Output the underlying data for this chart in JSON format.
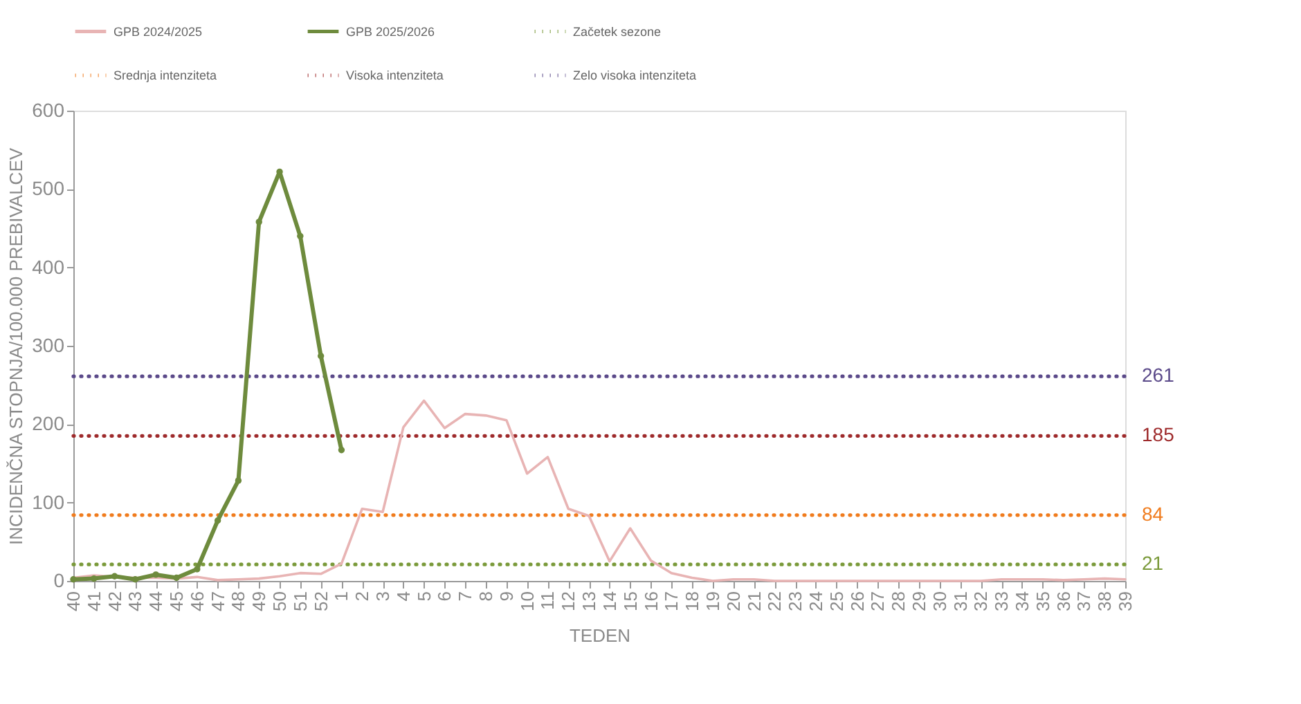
{
  "chart_data": {
    "type": "line",
    "xlabel": "TEDEN",
    "ylabel": "INCIDENČNA  STOPNJA/100.000  PREBIVALCEV",
    "categories": [
      "40",
      "41",
      "42",
      "43",
      "44",
      "45",
      "46",
      "47",
      "48",
      "49",
      "50",
      "51",
      "52",
      "1",
      "2",
      "3",
      "4",
      "5",
      "6",
      "7",
      "8",
      "9",
      "10",
      "11",
      "12",
      "13",
      "14",
      "15",
      "16",
      "17",
      "18",
      "19",
      "20",
      "21",
      "22",
      "23",
      "24",
      "25",
      "26",
      "27",
      "28",
      "29",
      "30",
      "31",
      "32",
      "33",
      "34",
      "35",
      "36",
      "37",
      "38",
      "39"
    ],
    "ylim": [
      0,
      600
    ],
    "yticks": [
      0,
      100,
      200,
      300,
      400,
      500,
      600
    ],
    "grid": false,
    "legend": "top",
    "series": [
      {
        "name": "GPB 2024/2025",
        "color": "#e8b4b4",
        "line_style": "solid",
        "marker": "none",
        "values": [
          4,
          7,
          5,
          4,
          4,
          3,
          5,
          1,
          2,
          3,
          6,
          10,
          9,
          22,
          92,
          88,
          196,
          230,
          195,
          213,
          211,
          205,
          137,
          158,
          92,
          83,
          25,
          67,
          26,
          10,
          4,
          0,
          2,
          2,
          0,
          0,
          0,
          0,
          0,
          0,
          0,
          0,
          0,
          0,
          0,
          2,
          2,
          2,
          1,
          2,
          3,
          2
        ]
      },
      {
        "name": "GPB 2025/2026",
        "color": "#6e8b3d",
        "line_style": "solid",
        "marker": "circle",
        "values": [
          2,
          3,
          6,
          2,
          8,
          4,
          15,
          77,
          128,
          458,
          522,
          440,
          287,
          167,
          null,
          null,
          null,
          null,
          null,
          null,
          null,
          null,
          null,
          null,
          null,
          null,
          null,
          null,
          null,
          null,
          null,
          null,
          null,
          null,
          null,
          null,
          null,
          null,
          null,
          null,
          null,
          null,
          null,
          null,
          null,
          null,
          null,
          null,
          null,
          null,
          null,
          null
        ]
      },
      {
        "name": "Začetek sezone",
        "color": "#7a9a3a",
        "line_style": "dotted",
        "marker": "none",
        "values": [
          21,
          21,
          21,
          21,
          21,
          21,
          21,
          21,
          21,
          21,
          21,
          21,
          21,
          21,
          21,
          21,
          21,
          21,
          21,
          21,
          21,
          21,
          21,
          21,
          21,
          21,
          21,
          21,
          21,
          21,
          21,
          21,
          21,
          21,
          21,
          21,
          21,
          21,
          21,
          21,
          21,
          21,
          21,
          21,
          21,
          21,
          21,
          21,
          21,
          21,
          21,
          21
        ],
        "value_labels": [
          null,
          null,
          null,
          null,
          null,
          null,
          null,
          null,
          null,
          null,
          null,
          null,
          null,
          null,
          null,
          null,
          null,
          null,
          null,
          null,
          null,
          null,
          null,
          null,
          null,
          null,
          null,
          null,
          null,
          null,
          null,
          null,
          null,
          null,
          null,
          null,
          null,
          null,
          null,
          null,
          null,
          null,
          null,
          null,
          null,
          null,
          null,
          null,
          null,
          null,
          null,
          "21"
        ]
      },
      {
        "name": "Srednja intenziteta",
        "color": "#f07c1e",
        "line_style": "dotted",
        "marker": "none",
        "values": [
          84,
          84,
          84,
          84,
          84,
          84,
          84,
          84,
          84,
          84,
          84,
          84,
          84,
          84,
          84,
          84,
          84,
          84,
          84,
          84,
          84,
          84,
          84,
          84,
          84,
          84,
          84,
          84,
          84,
          84,
          84,
          84,
          84,
          84,
          84,
          84,
          84,
          84,
          84,
          84,
          84,
          84,
          84,
          84,
          84,
          84,
          84,
          84,
          84,
          84,
          84,
          84
        ],
        "value_labels": [
          null,
          null,
          null,
          null,
          null,
          null,
          null,
          null,
          null,
          null,
          null,
          null,
          null,
          null,
          null,
          null,
          null,
          null,
          null,
          null,
          null,
          null,
          null,
          null,
          null,
          null,
          null,
          null,
          null,
          null,
          null,
          null,
          null,
          null,
          null,
          null,
          null,
          null,
          null,
          null,
          null,
          null,
          null,
          null,
          null,
          null,
          null,
          null,
          null,
          null,
          null,
          "84"
        ]
      },
      {
        "name": "Visoka intenziteta",
        "color": "#9e2a2b",
        "line_style": "dotted",
        "marker": "none",
        "values": [
          185,
          185,
          185,
          185,
          185,
          185,
          185,
          185,
          185,
          185,
          185,
          185,
          185,
          185,
          185,
          185,
          185,
          185,
          185,
          185,
          185,
          185,
          185,
          185,
          185,
          185,
          185,
          185,
          185,
          185,
          185,
          185,
          185,
          185,
          185,
          185,
          185,
          185,
          185,
          185,
          185,
          185,
          185,
          185,
          185,
          185,
          185,
          185,
          185,
          185,
          185,
          185
        ],
        "value_labels": [
          null,
          null,
          null,
          null,
          null,
          null,
          null,
          null,
          null,
          null,
          null,
          null,
          null,
          null,
          null,
          null,
          null,
          null,
          null,
          null,
          null,
          null,
          null,
          null,
          null,
          null,
          null,
          null,
          null,
          null,
          null,
          null,
          null,
          null,
          null,
          null,
          null,
          null,
          null,
          null,
          null,
          null,
          null,
          null,
          null,
          null,
          null,
          null,
          null,
          null,
          null,
          "185"
        ]
      },
      {
        "name": "Zelo visoka intenziteta",
        "color": "#5b4a8a",
        "line_style": "dotted",
        "marker": "none",
        "values": [
          261,
          261,
          261,
          261,
          261,
          261,
          261,
          261,
          261,
          261,
          261,
          261,
          261,
          261,
          261,
          261,
          261,
          261,
          261,
          261,
          261,
          261,
          261,
          261,
          261,
          261,
          261,
          261,
          261,
          261,
          261,
          261,
          261,
          261,
          261,
          261,
          261,
          261,
          261,
          261,
          261,
          261,
          261,
          261,
          261,
          261,
          261,
          261,
          261,
          261,
          261,
          261
        ],
        "value_labels": [
          null,
          null,
          null,
          null,
          null,
          null,
          null,
          null,
          null,
          null,
          null,
          null,
          null,
          null,
          null,
          null,
          null,
          null,
          null,
          null,
          null,
          null,
          null,
          null,
          null,
          null,
          null,
          null,
          null,
          null,
          null,
          null,
          null,
          null,
          null,
          null,
          null,
          null,
          null,
          null,
          null,
          null,
          null,
          null,
          null,
          null,
          null,
          null,
          null,
          null,
          null,
          "261"
        ]
      }
    ]
  }
}
